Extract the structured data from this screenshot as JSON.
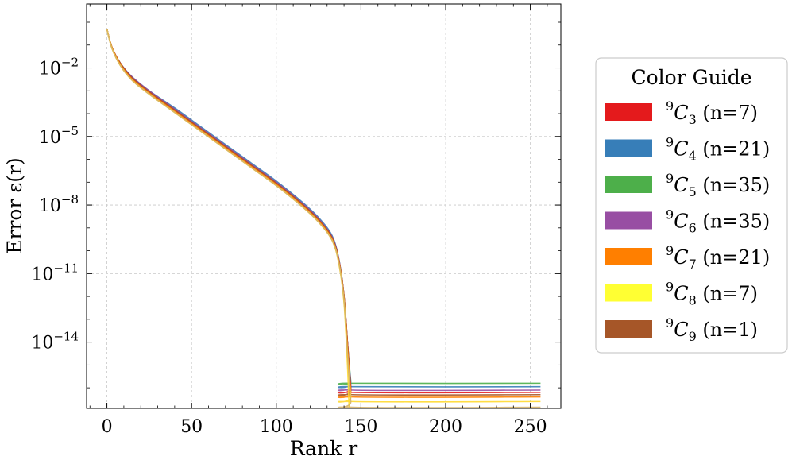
{
  "chart_data": {
    "type": "line",
    "xlabel": "Rank r",
    "ylabel": "Error ε(r)",
    "yscale": "log",
    "xlim": [
      -12,
      268
    ],
    "ylim": [
      -16.9,
      0.8
    ],
    "xticks": [
      0,
      50,
      100,
      150,
      200,
      250
    ],
    "yticks": [
      {
        "exp": -2,
        "base": "10",
        "sup": "−2"
      },
      {
        "exp": -5,
        "base": "10",
        "sup": "−5"
      },
      {
        "exp": -8,
        "base": "10",
        "sup": "−8"
      },
      {
        "exp": -11,
        "base": "10",
        "sup": "−11"
      },
      {
        "exp": -14,
        "base": "10",
        "sup": "−14"
      }
    ],
    "grid": true,
    "legend": {
      "title": "Color Guide",
      "position": "right, outside plot",
      "entries": [
        {
          "sup": "9",
          "base": "C",
          "sub": "3",
          "count": "(n=7)",
          "color": "#e41a1c"
        },
        {
          "sup": "9",
          "base": "C",
          "sub": "4",
          "count": "(n=21)",
          "color": "#377eb8"
        },
        {
          "sup": "9",
          "base": "C",
          "sub": "5",
          "count": "(n=35)",
          "color": "#4daf4a"
        },
        {
          "sup": "9",
          "base": "C",
          "sub": "6",
          "count": "(n=35)",
          "color": "#984ea3"
        },
        {
          "sup": "9",
          "base": "C",
          "sub": "7",
          "count": "(n=21)",
          "color": "#ff7f00"
        },
        {
          "sup": "9",
          "base": "C",
          "sub": "8",
          "count": "(n=7)",
          "color": "#ffff33"
        },
        {
          "sup": "9",
          "base": "C",
          "sub": "9",
          "count": "(n=1)",
          "color": "#a65628"
        }
      ]
    },
    "series": [
      {
        "color": "#4daf4a",
        "values_log10": [
          [
            0,
            -0.3
          ],
          [
            3,
            -1.1
          ],
          [
            8,
            -1.8
          ],
          [
            15,
            -2.4
          ],
          [
            25,
            -3.0
          ],
          [
            40,
            -3.8
          ],
          [
            55,
            -4.6
          ],
          [
            70,
            -5.4
          ],
          [
            85,
            -6.2
          ],
          [
            100,
            -7.0
          ],
          [
            115,
            -7.9
          ],
          [
            125,
            -8.6
          ],
          [
            133,
            -9.4
          ],
          [
            137,
            -10.4
          ],
          [
            140,
            -12.0
          ],
          [
            142,
            -14.0
          ],
          [
            144,
            -15.7
          ],
          [
            145,
            -15.8
          ],
          [
            256,
            -15.8
          ]
        ]
      },
      {
        "color": "#377eb8",
        "values_log10": [
          [
            0,
            -0.3
          ],
          [
            3,
            -1.1
          ],
          [
            8,
            -1.8
          ],
          [
            15,
            -2.4
          ],
          [
            25,
            -3.0
          ],
          [
            40,
            -3.75
          ],
          [
            55,
            -4.55
          ],
          [
            70,
            -5.35
          ],
          [
            85,
            -6.15
          ],
          [
            100,
            -6.95
          ],
          [
            115,
            -7.85
          ],
          [
            125,
            -8.55
          ],
          [
            133,
            -9.35
          ],
          [
            137,
            -10.4
          ],
          [
            140,
            -12.0
          ],
          [
            142,
            -14.0
          ],
          [
            144,
            -15.8
          ],
          [
            145,
            -15.95
          ],
          [
            256,
            -15.95
          ]
        ]
      },
      {
        "color": "#984ea3",
        "values_log10": [
          [
            0,
            -0.3
          ],
          [
            3,
            -1.1
          ],
          [
            8,
            -1.8
          ],
          [
            15,
            -2.4
          ],
          [
            25,
            -3.0
          ],
          [
            40,
            -3.8
          ],
          [
            55,
            -4.6
          ],
          [
            70,
            -5.4
          ],
          [
            85,
            -6.2
          ],
          [
            100,
            -7.0
          ],
          [
            115,
            -7.9
          ],
          [
            125,
            -8.6
          ],
          [
            133,
            -9.4
          ],
          [
            137,
            -10.4
          ],
          [
            140,
            -12.0
          ],
          [
            142,
            -14.0
          ],
          [
            144,
            -15.9
          ],
          [
            145,
            -16.1
          ],
          [
            256,
            -16.1
          ]
        ]
      },
      {
        "color": "#e41a1c",
        "values_log10": [
          [
            0,
            -0.3
          ],
          [
            3,
            -1.1
          ],
          [
            8,
            -1.8
          ],
          [
            15,
            -2.45
          ],
          [
            25,
            -3.05
          ],
          [
            40,
            -3.85
          ],
          [
            55,
            -4.65
          ],
          [
            70,
            -5.45
          ],
          [
            85,
            -6.25
          ],
          [
            100,
            -7.05
          ],
          [
            115,
            -7.95
          ],
          [
            125,
            -8.65
          ],
          [
            133,
            -9.45
          ],
          [
            137,
            -10.45
          ],
          [
            140,
            -12.0
          ],
          [
            142,
            -14.0
          ],
          [
            144,
            -16.0
          ],
          [
            145,
            -16.2
          ],
          [
            256,
            -16.2
          ]
        ]
      },
      {
        "color": "#a65628",
        "values_log10": [
          [
            0,
            -0.3
          ],
          [
            3,
            -1.1
          ],
          [
            8,
            -1.8
          ],
          [
            15,
            -2.45
          ],
          [
            25,
            -3.05
          ],
          [
            40,
            -3.85
          ],
          [
            55,
            -4.65
          ],
          [
            70,
            -5.45
          ],
          [
            85,
            -6.25
          ],
          [
            100,
            -7.05
          ],
          [
            115,
            -7.95
          ],
          [
            125,
            -8.65
          ],
          [
            133,
            -9.45
          ],
          [
            137,
            -10.45
          ],
          [
            140,
            -12.0
          ],
          [
            142,
            -14.0
          ],
          [
            144,
            -16.1
          ],
          [
            145,
            -16.3
          ],
          [
            256,
            -16.3
          ]
        ]
      },
      {
        "color": "#ff7f00",
        "values_log10": [
          [
            0,
            -0.3
          ],
          [
            3,
            -1.1
          ],
          [
            8,
            -1.85
          ],
          [
            15,
            -2.5
          ],
          [
            25,
            -3.1
          ],
          [
            40,
            -3.9
          ],
          [
            55,
            -4.7
          ],
          [
            70,
            -5.5
          ],
          [
            85,
            -6.3
          ],
          [
            100,
            -7.1
          ],
          [
            115,
            -8.0
          ],
          [
            125,
            -8.7
          ],
          [
            133,
            -9.5
          ],
          [
            137,
            -10.5
          ],
          [
            140,
            -12.1
          ],
          [
            142,
            -14.2
          ],
          [
            144,
            -16.2
          ],
          [
            145,
            -16.4
          ],
          [
            256,
            -16.4
          ]
        ]
      },
      {
        "color": "#ffd92f",
        "values_log10": [
          [
            0,
            -0.3
          ],
          [
            3,
            -1.15
          ],
          [
            8,
            -1.9
          ],
          [
            15,
            -2.55
          ],
          [
            25,
            -3.15
          ],
          [
            40,
            -3.95
          ],
          [
            55,
            -4.75
          ],
          [
            70,
            -5.55
          ],
          [
            85,
            -6.35
          ],
          [
            100,
            -7.15
          ],
          [
            115,
            -8.05
          ],
          [
            125,
            -8.75
          ],
          [
            133,
            -9.55
          ],
          [
            137,
            -10.55
          ],
          [
            140,
            -12.2
          ],
          [
            142,
            -14.5
          ],
          [
            144,
            -16.4
          ],
          [
            145,
            -16.6
          ],
          [
            256,
            -16.6
          ]
        ]
      },
      {
        "color": "#ffd92f",
        "values_log10": [
          [
            0,
            -0.3
          ],
          [
            3,
            -1.15
          ],
          [
            8,
            -1.9
          ],
          [
            15,
            -2.55
          ],
          [
            25,
            -3.15
          ],
          [
            40,
            -3.95
          ],
          [
            55,
            -4.75
          ],
          [
            70,
            -5.55
          ],
          [
            85,
            -6.35
          ],
          [
            100,
            -7.15
          ],
          [
            115,
            -8.05
          ],
          [
            125,
            -8.75
          ],
          [
            133,
            -9.55
          ],
          [
            137,
            -10.6
          ],
          [
            140,
            -12.3
          ],
          [
            142,
            -15.0
          ],
          [
            143,
            -16.9
          ]
        ]
      },
      {
        "color": "#d4b26a",
        "values_log10": [
          [
            0,
            -0.3
          ],
          [
            3,
            -1.15
          ],
          [
            8,
            -1.9
          ],
          [
            15,
            -2.55
          ],
          [
            25,
            -3.15
          ],
          [
            40,
            -3.95
          ],
          [
            55,
            -4.75
          ],
          [
            70,
            -5.55
          ],
          [
            85,
            -6.35
          ],
          [
            100,
            -7.15
          ],
          [
            115,
            -8.05
          ],
          [
            125,
            -8.75
          ],
          [
            133,
            -9.55
          ],
          [
            137,
            -10.55
          ],
          [
            140,
            -12.2
          ],
          [
            142,
            -14.5
          ],
          [
            144,
            -16.6
          ],
          [
            145,
            -16.85
          ],
          [
            256,
            -16.85
          ]
        ]
      }
    ]
  }
}
